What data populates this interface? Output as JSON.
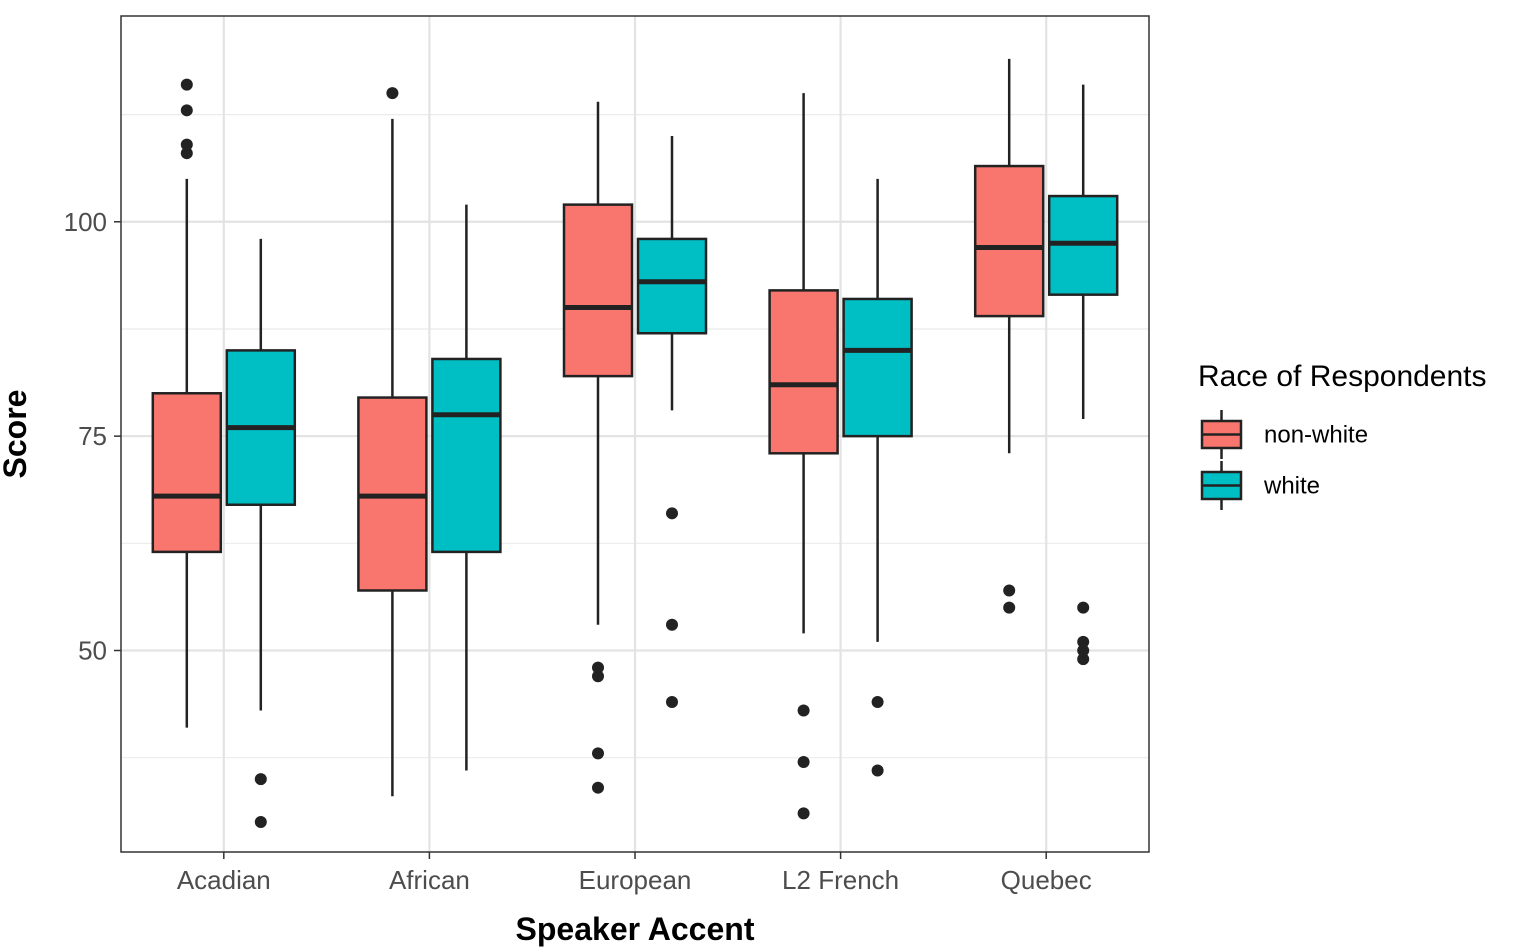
{
  "chart_data": {
    "type": "boxplot",
    "xlabel": "Speaker Accent",
    "ylabel": "Score",
    "categories": [
      "Acadian",
      "African",
      "European",
      "L2 French",
      "Quebec"
    ],
    "yticks": [
      50,
      75,
      100
    ],
    "ylim": [
      26.5,
      124
    ],
    "grid": true,
    "legend": {
      "title": "Race of Respondents",
      "position": "right",
      "entries": [
        "non-white",
        "white"
      ]
    },
    "colors": {
      "non-white": "#F8766D",
      "white": "#00BFC4"
    },
    "series": [
      {
        "name": "non-white",
        "boxes": [
          {
            "category": "Acadian",
            "min": 41,
            "q1": 61.5,
            "median": 68,
            "q3": 80,
            "max": 105,
            "outliers": [
              108,
              109,
              113,
              116
            ]
          },
          {
            "category": "African",
            "min": 33,
            "q1": 57,
            "median": 68,
            "q3": 79.5,
            "max": 112,
            "outliers": [
              115
            ]
          },
          {
            "category": "European",
            "min": 53,
            "q1": 82,
            "median": 90,
            "q3": 102,
            "max": 114,
            "outliers": [
              34,
              38,
              47,
              48
            ]
          },
          {
            "category": "L2 French",
            "min": 52,
            "q1": 73,
            "median": 81,
            "q3": 92,
            "max": 115,
            "outliers": [
              31,
              37,
              43
            ]
          },
          {
            "category": "Quebec",
            "min": 73,
            "q1": 89,
            "median": 97,
            "q3": 106.5,
            "max": 119,
            "outliers": [
              55,
              57
            ]
          }
        ]
      },
      {
        "name": "white",
        "boxes": [
          {
            "category": "Acadian",
            "min": 43,
            "q1": 67,
            "median": 76,
            "q3": 85,
            "max": 98,
            "outliers": [
              30,
              35
            ]
          },
          {
            "category": "African",
            "min": 36,
            "q1": 61.5,
            "median": 77.5,
            "q3": 84,
            "max": 102,
            "outliers": []
          },
          {
            "category": "European",
            "min": 78,
            "q1": 87,
            "median": 93,
            "q3": 98,
            "max": 110,
            "outliers": [
              44,
              53,
              66
            ]
          },
          {
            "category": "L2 French",
            "min": 51,
            "q1": 75,
            "median": 85,
            "q3": 91,
            "max": 105,
            "outliers": [
              36,
              44
            ]
          },
          {
            "category": "Quebec",
            "min": 77,
            "q1": 91.5,
            "median": 97.5,
            "q3": 103,
            "max": 116,
            "outliers": [
              49,
              50,
              51,
              55
            ]
          }
        ]
      }
    ]
  }
}
